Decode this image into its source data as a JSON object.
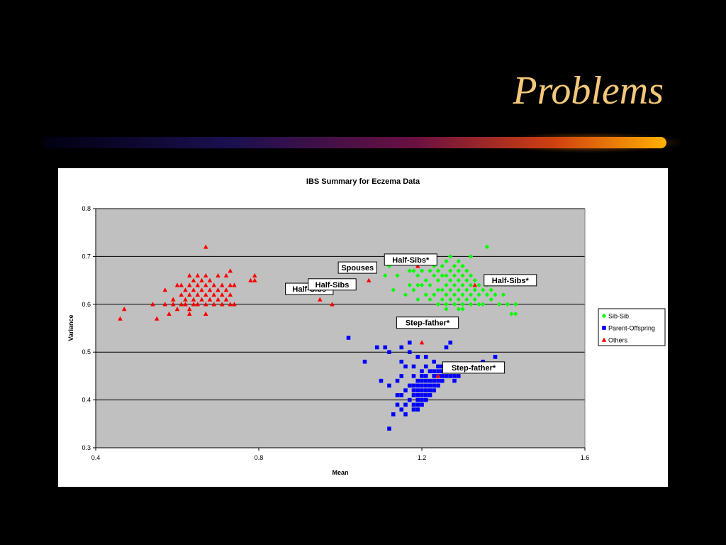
{
  "slide": {
    "title": "Problems"
  },
  "colors": {
    "background": "#000000",
    "title": "#f4c87a",
    "plot_area": "#c0c0c0",
    "sib_sib": "#00ff00",
    "parent_offspring": "#0000ff",
    "others": "#ff0000"
  },
  "chart_data": {
    "type": "scatter",
    "title": "IBS Summary for Eczema Data",
    "xlabel": "Mean",
    "ylabel": "Variance",
    "xlim": [
      0.4,
      1.6
    ],
    "ylim": [
      0.3,
      0.8
    ],
    "xticks": [
      "0.4",
      "0.8",
      "1.2",
      "1.6"
    ],
    "yticks": [
      "0.3",
      "0.4",
      "0.5",
      "0.6",
      "0.7",
      "0.8"
    ],
    "grid": "horizontal",
    "legend": "right",
    "series": [
      {
        "name": "Sib-Sib",
        "marker": "diamond",
        "color": "#00ff00",
        "points": [
          [
            1.11,
            0.66
          ],
          [
            1.12,
            0.68
          ],
          [
            1.13,
            0.63
          ],
          [
            1.14,
            0.66
          ],
          [
            1.16,
            0.62
          ],
          [
            1.17,
            0.67
          ],
          [
            1.17,
            0.64
          ],
          [
            1.18,
            0.67
          ],
          [
            1.18,
            0.63
          ],
          [
            1.19,
            0.64
          ],
          [
            1.19,
            0.61
          ],
          [
            1.19,
            0.66
          ],
          [
            1.2,
            0.64
          ],
          [
            1.2,
            0.67
          ],
          [
            1.21,
            0.62
          ],
          [
            1.21,
            0.65
          ],
          [
            1.21,
            0.69
          ],
          [
            1.22,
            0.61
          ],
          [
            1.22,
            0.64
          ],
          [
            1.22,
            0.67
          ],
          [
            1.23,
            0.62
          ],
          [
            1.23,
            0.66
          ],
          [
            1.23,
            0.68
          ],
          [
            1.24,
            0.6
          ],
          [
            1.24,
            0.63
          ],
          [
            1.24,
            0.65
          ],
          [
            1.24,
            0.67
          ],
          [
            1.25,
            0.61
          ],
          [
            1.25,
            0.63
          ],
          [
            1.25,
            0.66
          ],
          [
            1.25,
            0.68
          ],
          [
            1.26,
            0.6
          ],
          [
            1.26,
            0.62
          ],
          [
            1.26,
            0.64
          ],
          [
            1.26,
            0.66
          ],
          [
            1.26,
            0.69
          ],
          [
            1.27,
            0.61
          ],
          [
            1.27,
            0.63
          ],
          [
            1.27,
            0.65
          ],
          [
            1.27,
            0.67
          ],
          [
            1.28,
            0.6
          ],
          [
            1.28,
            0.62
          ],
          [
            1.28,
            0.64
          ],
          [
            1.28,
            0.66
          ],
          [
            1.28,
            0.68
          ],
          [
            1.29,
            0.59
          ],
          [
            1.29,
            0.61
          ],
          [
            1.29,
            0.63
          ],
          [
            1.29,
            0.65
          ],
          [
            1.29,
            0.67
          ],
          [
            1.3,
            0.6
          ],
          [
            1.3,
            0.62
          ],
          [
            1.3,
            0.64
          ],
          [
            1.3,
            0.66
          ],
          [
            1.3,
            0.68
          ],
          [
            1.31,
            0.61
          ],
          [
            1.31,
            0.63
          ],
          [
            1.31,
            0.65
          ],
          [
            1.31,
            0.67
          ],
          [
            1.32,
            0.6
          ],
          [
            1.32,
            0.62
          ],
          [
            1.32,
            0.64
          ],
          [
            1.32,
            0.66
          ],
          [
            1.33,
            0.61
          ],
          [
            1.33,
            0.63
          ],
          [
            1.33,
            0.65
          ],
          [
            1.34,
            0.62
          ],
          [
            1.34,
            0.64
          ],
          [
            1.35,
            0.6
          ],
          [
            1.35,
            0.63
          ],
          [
            1.36,
            0.62
          ],
          [
            1.36,
            0.64
          ],
          [
            1.37,
            0.61
          ],
          [
            1.37,
            0.63
          ],
          [
            1.38,
            0.62
          ],
          [
            1.39,
            0.6
          ],
          [
            1.4,
            0.62
          ],
          [
            1.41,
            0.6
          ],
          [
            1.42,
            0.58
          ],
          [
            1.43,
            0.58
          ],
          [
            1.43,
            0.6
          ],
          [
            1.36,
            0.72
          ],
          [
            1.32,
            0.7
          ],
          [
            1.29,
            0.69
          ],
          [
            1.27,
            0.7
          ],
          [
            1.26,
            0.59
          ],
          [
            1.3,
            0.59
          ],
          [
            1.34,
            0.6
          ],
          [
            1.15,
            0.69
          ]
        ]
      },
      {
        "name": "Parent-Offspring",
        "marker": "square",
        "color": "#0000ff",
        "points": [
          [
            1.02,
            0.53
          ],
          [
            1.06,
            0.48
          ],
          [
            1.09,
            0.51
          ],
          [
            1.11,
            0.51
          ],
          [
            1.1,
            0.44
          ],
          [
            1.12,
            0.43
          ],
          [
            1.12,
            0.34
          ],
          [
            1.13,
            0.37
          ],
          [
            1.14,
            0.39
          ],
          [
            1.14,
            0.44
          ],
          [
            1.15,
            0.38
          ],
          [
            1.15,
            0.41
          ],
          [
            1.15,
            0.45
          ],
          [
            1.15,
            0.48
          ],
          [
            1.15,
            0.51
          ],
          [
            1.16,
            0.37
          ],
          [
            1.16,
            0.39
          ],
          [
            1.16,
            0.42
          ],
          [
            1.16,
            0.47
          ],
          [
            1.17,
            0.4
          ],
          [
            1.17,
            0.43
          ],
          [
            1.17,
            0.5
          ],
          [
            1.17,
            0.52
          ],
          [
            1.18,
            0.38
          ],
          [
            1.18,
            0.39
          ],
          [
            1.18,
            0.41
          ],
          [
            1.18,
            0.42
          ],
          [
            1.18,
            0.43
          ],
          [
            1.18,
            0.45
          ],
          [
            1.18,
            0.47
          ],
          [
            1.19,
            0.38
          ],
          [
            1.19,
            0.39
          ],
          [
            1.19,
            0.4
          ],
          [
            1.19,
            0.41
          ],
          [
            1.19,
            0.42
          ],
          [
            1.19,
            0.43
          ],
          [
            1.19,
            0.44
          ],
          [
            1.19,
            0.49
          ],
          [
            1.2,
            0.39
          ],
          [
            1.2,
            0.4
          ],
          [
            1.2,
            0.41
          ],
          [
            1.2,
            0.42
          ],
          [
            1.2,
            0.43
          ],
          [
            1.2,
            0.44
          ],
          [
            1.2,
            0.45
          ],
          [
            1.2,
            0.46
          ],
          [
            1.21,
            0.4
          ],
          [
            1.21,
            0.41
          ],
          [
            1.21,
            0.42
          ],
          [
            1.21,
            0.43
          ],
          [
            1.21,
            0.44
          ],
          [
            1.21,
            0.45
          ],
          [
            1.21,
            0.47
          ],
          [
            1.21,
            0.49
          ],
          [
            1.22,
            0.41
          ],
          [
            1.22,
            0.42
          ],
          [
            1.22,
            0.43
          ],
          [
            1.22,
            0.44
          ],
          [
            1.22,
            0.46
          ],
          [
            1.23,
            0.42
          ],
          [
            1.23,
            0.43
          ],
          [
            1.23,
            0.44
          ],
          [
            1.23,
            0.45
          ],
          [
            1.23,
            0.46
          ],
          [
            1.23,
            0.48
          ],
          [
            1.24,
            0.43
          ],
          [
            1.24,
            0.44
          ],
          [
            1.24,
            0.45
          ],
          [
            1.24,
            0.46
          ],
          [
            1.24,
            0.47
          ],
          [
            1.25,
            0.44
          ],
          [
            1.25,
            0.45
          ],
          [
            1.25,
            0.46
          ],
          [
            1.25,
            0.47
          ],
          [
            1.26,
            0.45
          ],
          [
            1.26,
            0.46
          ],
          [
            1.26,
            0.51
          ],
          [
            1.27,
            0.45
          ],
          [
            1.27,
            0.46
          ],
          [
            1.27,
            0.52
          ],
          [
            1.28,
            0.44
          ],
          [
            1.28,
            0.45
          ],
          [
            1.28,
            0.46
          ],
          [
            1.29,
            0.45
          ],
          [
            1.29,
            0.46
          ],
          [
            1.3,
            0.46
          ],
          [
            1.32,
            0.47
          ],
          [
            1.35,
            0.48
          ],
          [
            1.38,
            0.49
          ],
          [
            1.12,
            0.5
          ],
          [
            1.14,
            0.41
          ]
        ]
      },
      {
        "name": "Others",
        "marker": "triangle",
        "color": "#ff0000",
        "points": [
          [
            0.46,
            0.57
          ],
          [
            0.47,
            0.59
          ],
          [
            0.54,
            0.6
          ],
          [
            0.55,
            0.57
          ],
          [
            0.57,
            0.6
          ],
          [
            0.57,
            0.63
          ],
          [
            0.58,
            0.58
          ],
          [
            0.59,
            0.61
          ],
          [
            0.59,
            0.6
          ],
          [
            0.6,
            0.59
          ],
          [
            0.6,
            0.64
          ],
          [
            0.61,
            0.6
          ],
          [
            0.61,
            0.62
          ],
          [
            0.61,
            0.64
          ],
          [
            0.62,
            0.6
          ],
          [
            0.62,
            0.61
          ],
          [
            0.62,
            0.63
          ],
          [
            0.63,
            0.58
          ],
          [
            0.63,
            0.59
          ],
          [
            0.63,
            0.62
          ],
          [
            0.63,
            0.64
          ],
          [
            0.63,
            0.66
          ],
          [
            0.64,
            0.6
          ],
          [
            0.64,
            0.61
          ],
          [
            0.64,
            0.63
          ],
          [
            0.64,
            0.65
          ],
          [
            0.65,
            0.6
          ],
          [
            0.65,
            0.62
          ],
          [
            0.65,
            0.64
          ],
          [
            0.65,
            0.66
          ],
          [
            0.66,
            0.61
          ],
          [
            0.66,
            0.63
          ],
          [
            0.66,
            0.65
          ],
          [
            0.67,
            0.58
          ],
          [
            0.67,
            0.6
          ],
          [
            0.67,
            0.62
          ],
          [
            0.67,
            0.64
          ],
          [
            0.67,
            0.66
          ],
          [
            0.68,
            0.61
          ],
          [
            0.68,
            0.63
          ],
          [
            0.68,
            0.65
          ],
          [
            0.69,
            0.6
          ],
          [
            0.69,
            0.62
          ],
          [
            0.69,
            0.64
          ],
          [
            0.7,
            0.61
          ],
          [
            0.7,
            0.63
          ],
          [
            0.7,
            0.66
          ],
          [
            0.71,
            0.6
          ],
          [
            0.71,
            0.62
          ],
          [
            0.71,
            0.64
          ],
          [
            0.72,
            0.61
          ],
          [
            0.72,
            0.63
          ],
          [
            0.72,
            0.66
          ],
          [
            0.73,
            0.62
          ],
          [
            0.73,
            0.6
          ],
          [
            0.73,
            0.64
          ],
          [
            0.74,
            0.6
          ],
          [
            0.74,
            0.64
          ],
          [
            0.67,
            0.72
          ],
          [
            0.73,
            0.67
          ],
          [
            0.78,
            0.65
          ],
          [
            0.79,
            0.66
          ],
          [
            0.79,
            0.65
          ],
          [
            0.95,
            0.61
          ],
          [
            0.98,
            0.6
          ],
          [
            1.07,
            0.65
          ],
          [
            1.19,
            0.68
          ],
          [
            1.2,
            0.52
          ],
          [
            1.24,
            0.45
          ],
          [
            1.33,
            0.64
          ]
        ]
      }
    ],
    "annotations": [
      {
        "text": "Half-Sibs*",
        "x": 1.19,
        "y": 0.68
      },
      {
        "text": "Spouses",
        "x": 1.07,
        "y": 0.65
      },
      {
        "text": "Half-Sibs*",
        "x": 1.33,
        "y": 0.64
      },
      {
        "text": "Half-Sibs",
        "x": 0.95,
        "y": 0.61
      },
      {
        "text": "Half-Sibs",
        "x": 0.98,
        "y": 0.6
      },
      {
        "text": "Step-father*",
        "x": 1.2,
        "y": 0.52
      },
      {
        "text": "Step-father*",
        "x": 1.24,
        "y": 0.45
      }
    ]
  }
}
